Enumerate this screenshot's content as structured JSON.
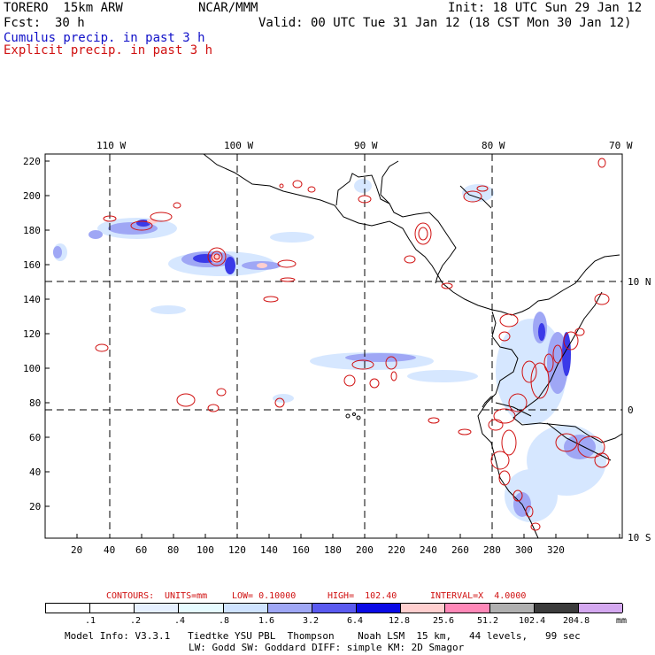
{
  "header": {
    "model": "TORERO  15km ARW",
    "org": "NCAR/MMM",
    "init": "Init: 18 UTC Sun 29 Jan 12",
    "fcst_label": "Fcst:",
    "fcst_value": "30 h",
    "valid": "Valid: 00 UTC Tue 31 Jan 12 (18 CST Mon 30 Jan 12)",
    "legend_cumulus": "Cumulus precip. in past 3 h",
    "legend_explicit": "Explicit precip. in past 3 h"
  },
  "map": {
    "lon_labels": [
      "110 W",
      "100 W",
      "90 W",
      "80 W",
      "70 W"
    ],
    "lat_labels": [
      "10 N",
      "0",
      "10 S"
    ],
    "x_ticks": [
      "20",
      "40",
      "60",
      "80",
      "100",
      "120",
      "140",
      "160",
      "180",
      "200",
      "220",
      "240",
      "260",
      "280",
      "300",
      "320"
    ],
    "y_ticks": [
      "220",
      "200",
      "180",
      "160",
      "140",
      "120",
      "100",
      "80",
      "60",
      "40",
      "20"
    ]
  },
  "contours": {
    "label": "CONTOURS:",
    "units": "UNITS=mm",
    "low": "LOW= 0.10000",
    "high": "HIGH=  102.40",
    "interval": "INTERVAL=X  4.0000"
  },
  "colorbar": {
    "labels": [
      ".1",
      ".2",
      ".4",
      ".8",
      "1.6",
      "3.2",
      "6.4",
      "12.8",
      "25.6",
      "51.2",
      "102.4",
      "204.8"
    ],
    "unit": "mm",
    "colors": [
      "#ffffff",
      "#ffffff",
      "#e6f0ff",
      "#e6fbff",
      "#cfe3ff",
      "#9fa7f5",
      "#5a5af0",
      "#0a0ae6",
      "#ffcfcf",
      "#ff88b8",
      "#b0b0b0",
      "#3c3c3c",
      "#d4a8f0"
    ]
  },
  "footer": {
    "line1": "Model Info: V3.3.1   Tiedtke YSU PBL  Thompson    Noah LSM  15 km,   44 levels,   99 sec",
    "line2": "LW: Godd SW: Goddard DIFF: simple KM: 2D Smagor"
  }
}
